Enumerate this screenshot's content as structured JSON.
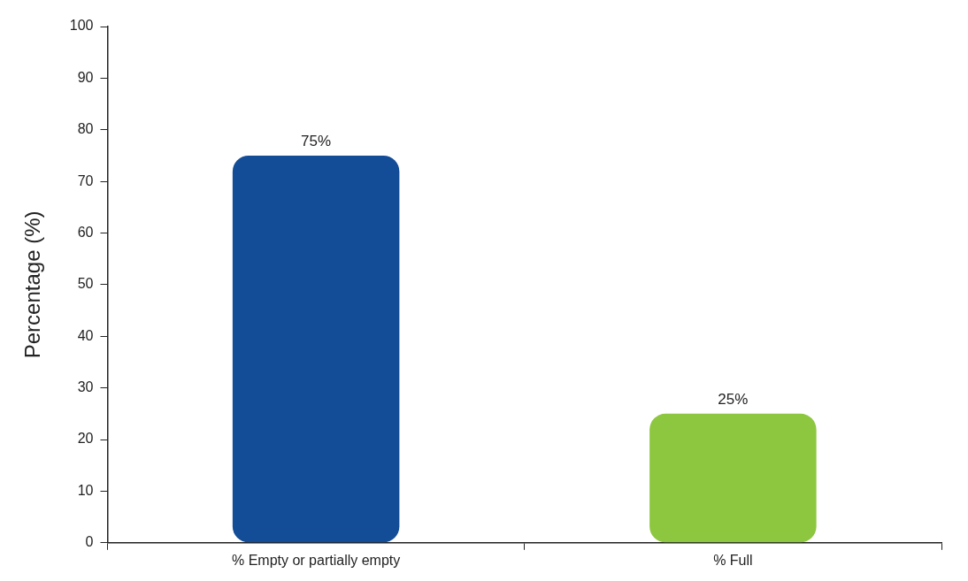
{
  "chart_data": {
    "type": "bar",
    "y_label": "Percentage (%)",
    "categories": [
      "% Empty or partially empty",
      "% Full"
    ],
    "values": [
      75,
      25
    ],
    "value_labels": [
      "75%",
      "25%"
    ],
    "data_labels": true,
    "colors": [
      "#134c97",
      "#8dc63f"
    ],
    "ylim": [
      0,
      100
    ],
    "yticks": [
      0,
      10,
      20,
      30,
      40,
      50,
      60,
      70,
      80,
      90,
      100
    ],
    "grid": false
  }
}
